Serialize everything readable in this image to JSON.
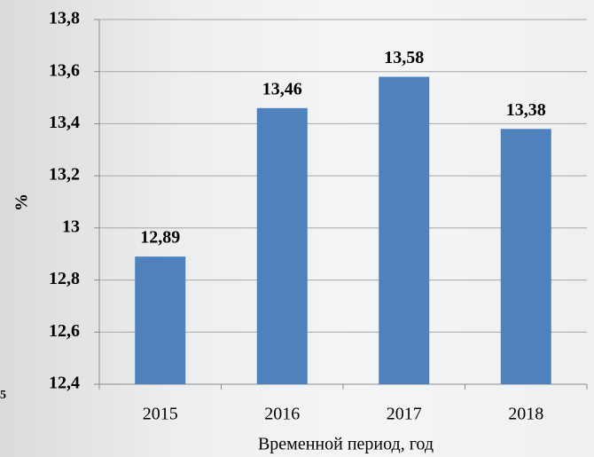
{
  "chart_data": {
    "type": "bar",
    "x_label": "Временной период, год",
    "y_label": "%",
    "categories": [
      "2015",
      "2016",
      "2017",
      "2018"
    ],
    "values": [
      12.89,
      13.46,
      13.58,
      13.38
    ],
    "value_labels": [
      "12,89",
      "13,46",
      "13,58",
      "13,38"
    ],
    "color": "#4f81bd",
    "ylim": [
      12.4,
      13.8
    ],
    "yticks": [
      {
        "value": 12.4,
        "label": "12,4"
      },
      {
        "value": 12.6,
        "label": "12,6"
      },
      {
        "value": 12.8,
        "label": "12,8"
      },
      13,
      {
        "value": 13.2,
        "label": "13,2"
      },
      {
        "value": 13.4,
        "label": "13,4"
      },
      {
        "value": 13.6,
        "label": "13,6"
      },
      {
        "value": 13.8,
        "label": "13,8"
      }
    ],
    "grid": true
  },
  "edge_fragment": "5"
}
